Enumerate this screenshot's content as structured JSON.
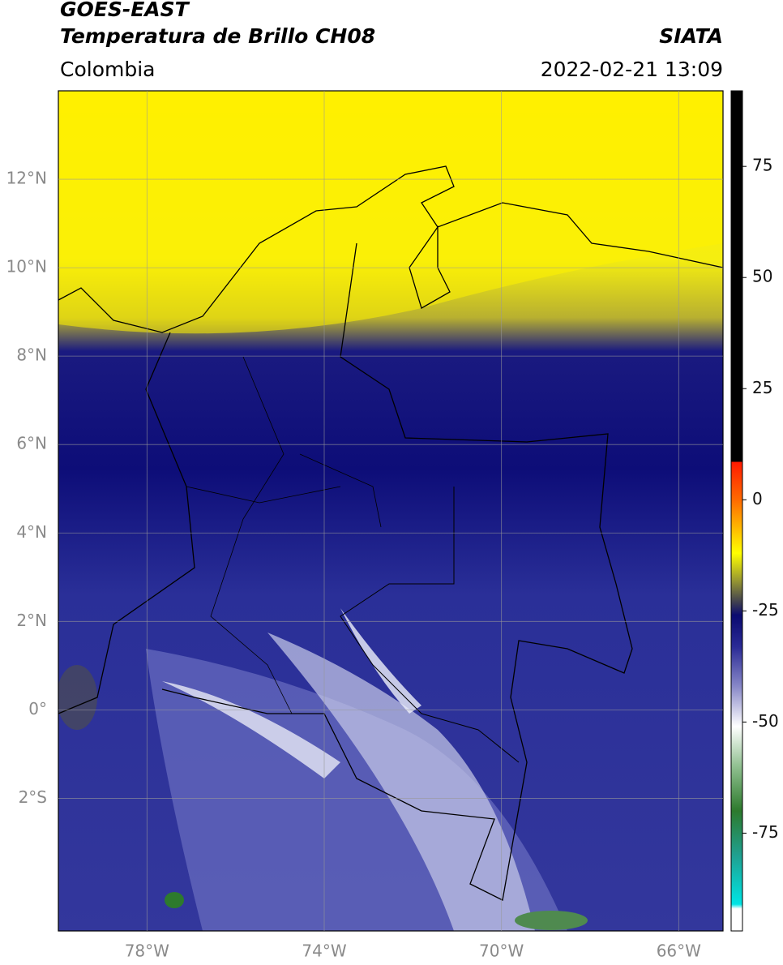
{
  "chart_data": {
    "type": "map",
    "title": "GOES-EAST",
    "subtitle": "Temperatura de Brillo CH08",
    "source": "SIATA",
    "region": "Colombia",
    "datetime": "2022-02-21 13:09",
    "xlim": [
      -80,
      -65
    ],
    "ylim": [
      -5,
      14
    ],
    "xticks": [
      {
        "value": -78,
        "label": "78°W"
      },
      {
        "value": -74,
        "label": "74°W"
      },
      {
        "value": -70,
        "label": "70°W"
      },
      {
        "value": -66,
        "label": "66°W"
      }
    ],
    "yticks": [
      {
        "value": 12,
        "label": "12°N"
      },
      {
        "value": 10,
        "label": "10°N"
      },
      {
        "value": 8,
        "label": "8°N"
      },
      {
        "value": 6,
        "label": "6°N"
      },
      {
        "value": 4,
        "label": "4°N"
      },
      {
        "value": 2,
        "label": "2°N"
      },
      {
        "value": 0,
        "label": "0°"
      },
      {
        "value": -2,
        "label": "2°S"
      }
    ],
    "grid": true,
    "colorbar": {
      "lim": [
        -97,
        92
      ],
      "ticks": [
        75,
        50,
        25,
        0,
        -25,
        -50,
        -75
      ],
      "stops": [
        {
          "value": 92,
          "color": "#000000"
        },
        {
          "value": 8.5,
          "color": "#000000"
        },
        {
          "value": 8.5,
          "color": "#ff1a00"
        },
        {
          "value": 0,
          "color": "#ff6a00"
        },
        {
          "value": -6,
          "color": "#ffb400"
        },
        {
          "value": -12,
          "color": "#ffff00"
        },
        {
          "value": -18,
          "color": "#9a9a30"
        },
        {
          "value": -23,
          "color": "#404050"
        },
        {
          "value": -26,
          "color": "#0a0a70"
        },
        {
          "value": -33,
          "color": "#2a2a95"
        },
        {
          "value": -42,
          "color": "#8888c8"
        },
        {
          "value": -51,
          "color": "#ffffff"
        },
        {
          "value": -60,
          "color": "#90c090"
        },
        {
          "value": -70,
          "color": "#2d7a2d"
        },
        {
          "value": -80,
          "color": "#20a090"
        },
        {
          "value": -91,
          "color": "#00e5e5"
        },
        {
          "value": -92,
          "color": "#ffffff"
        },
        {
          "value": -97,
          "color": "#ffffff"
        }
      ]
    }
  }
}
